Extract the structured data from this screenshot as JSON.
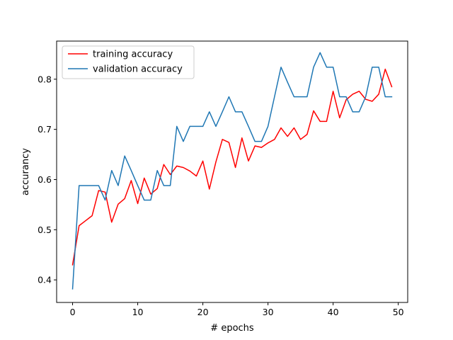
{
  "chart_data": {
    "type": "line",
    "title": "",
    "xlabel": "# epochs",
    "ylabel": "accurancy",
    "xlim": [
      -2.45,
      51.45
    ],
    "ylim": [
      0.355,
      0.876
    ],
    "xticks": [
      0,
      10,
      20,
      30,
      40,
      50
    ],
    "yticks": [
      0.4,
      0.5,
      0.6,
      0.7,
      0.8
    ],
    "grid": false,
    "legend_position": "upper left",
    "x": [
      0,
      1,
      2,
      3,
      4,
      5,
      6,
      7,
      8,
      9,
      10,
      11,
      12,
      13,
      14,
      15,
      16,
      17,
      18,
      19,
      20,
      21,
      22,
      23,
      24,
      25,
      26,
      27,
      28,
      29,
      30,
      31,
      32,
      33,
      34,
      35,
      36,
      37,
      38,
      39,
      40,
      41,
      42,
      43,
      44,
      45,
      46,
      47,
      48,
      49
    ],
    "series": [
      {
        "name": "training accuracy",
        "color": "#ff0000",
        "values": [
          0.43,
          0.508,
          0.518,
          0.528,
          0.578,
          0.575,
          0.515,
          0.551,
          0.562,
          0.598,
          0.552,
          0.603,
          0.571,
          0.582,
          0.63,
          0.61,
          0.627,
          0.624,
          0.617,
          0.607,
          0.637,
          0.581,
          0.635,
          0.68,
          0.674,
          0.624,
          0.683,
          0.637,
          0.667,
          0.664,
          0.673,
          0.68,
          0.703,
          0.686,
          0.703,
          0.68,
          0.69,
          0.737,
          0.716,
          0.716,
          0.776,
          0.723,
          0.759,
          0.77,
          0.776,
          0.76,
          0.756,
          0.77,
          0.82,
          0.785
        ]
      },
      {
        "name": "validation accuracy",
        "color": "#1f77b4",
        "values": [
          0.382,
          0.588,
          0.588,
          0.588,
          0.588,
          0.559,
          0.618,
          0.588,
          0.647,
          0.618,
          0.588,
          0.559,
          0.559,
          0.618,
          0.588,
          0.588,
          0.706,
          0.676,
          0.706,
          0.706,
          0.706,
          0.735,
          0.706,
          0.735,
          0.765,
          0.735,
          0.735,
          0.706,
          0.676,
          0.676,
          0.706,
          0.765,
          0.824,
          0.794,
          0.765,
          0.765,
          0.765,
          0.824,
          0.853,
          0.824,
          0.824,
          0.765,
          0.765,
          0.735,
          0.735,
          0.765,
          0.824,
          0.824,
          0.765,
          0.765
        ]
      }
    ]
  }
}
